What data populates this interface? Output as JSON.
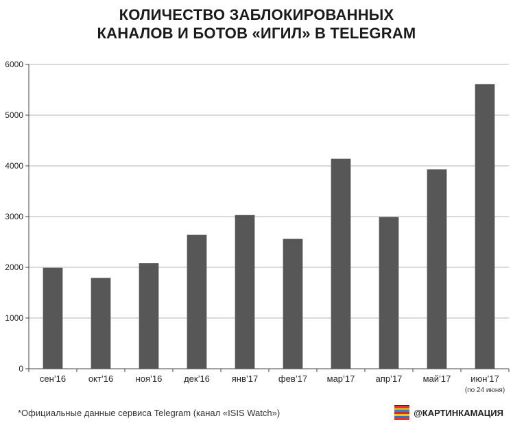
{
  "title_lines": [
    "КОЛИЧЕСТВО ЗАБЛОКИРОВАННЫХ",
    "КАНАЛОВ И БОТОВ «ИГИЛ» В TELEGRAM"
  ],
  "chart_data": {
    "type": "bar",
    "title": "КОЛИЧЕСТВО ЗАБЛОКИРОВАННЫХ КАНАЛОВ И БОТОВ «ИГИЛ» В TELEGRAM",
    "categories": [
      "сен’16",
      "окт’16",
      "ноя’16",
      "дек’16",
      "янв’17",
      "фев’17",
      "мар’17",
      "апр’17",
      "май’17",
      "июн’17"
    ],
    "category_notes": [
      "",
      "",
      "",
      "",
      "",
      "",
      "",
      "",
      "",
      "(по 24 июня)"
    ],
    "values": [
      1990,
      1790,
      2080,
      2640,
      3030,
      2560,
      4140,
      2990,
      3930,
      5610
    ],
    "ylim": [
      0,
      6000
    ],
    "yticks": [
      0,
      1000,
      2000,
      3000,
      4000,
      5000,
      6000
    ],
    "grid": true,
    "bar_color": "#575757",
    "xlabel": "",
    "ylabel": ""
  },
  "footnote": "*Официальные данные сервиса Telegram (канал «ISIS Watch»)",
  "brand": {
    "label": "@КАРТИНКАМАЦИЯ",
    "logo_icon": "kartinkamaciya-logo-icon",
    "logo_colors": [
      "#e8332a",
      "#f4c21c",
      "#3a7bd5",
      "#e8332a",
      "#f4c21c",
      "#3a7bd5",
      "#e8332a"
    ]
  }
}
